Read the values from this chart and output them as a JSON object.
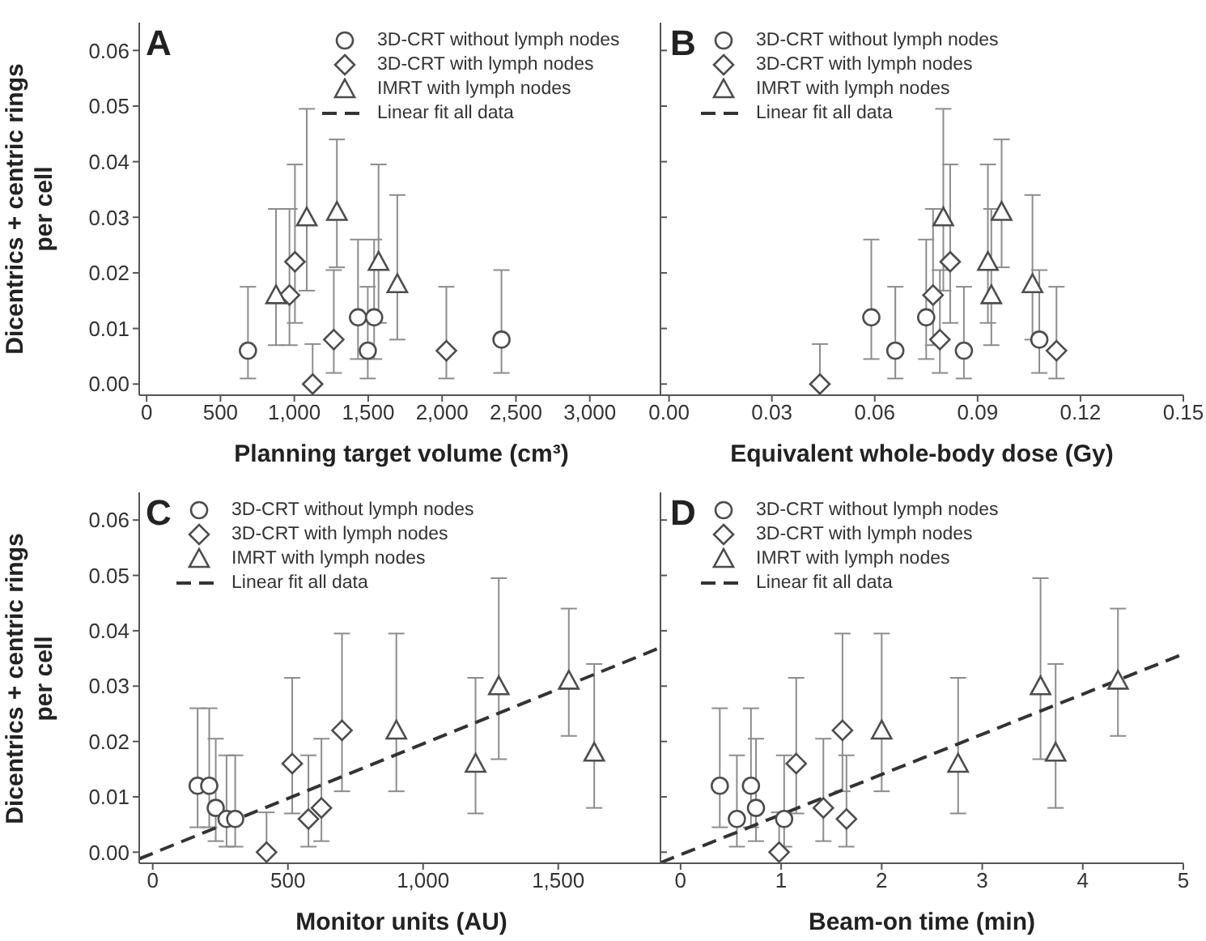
{
  "chart_data": [
    {
      "type": "scatter",
      "annotations": [
        "A"
      ],
      "xlabel": "Planning target volume (cm³)",
      "ylabel": "Dicentrics + centric rings per cell",
      "xlim": [
        -50,
        3500
      ],
      "ylim": [
        -0.002,
        0.065
      ],
      "xticks": [
        0,
        500,
        {
          "value": 1000,
          "label": "1,000"
        },
        {
          "value": 1500,
          "label": "1,500"
        },
        {
          "value": 2000,
          "label": "2,000"
        },
        {
          "value": 2500,
          "label": "2,500"
        },
        {
          "value": 3000,
          "label": "3,000"
        }
      ],
      "yticks": [
        {
          "value": 0,
          "label": "0.00"
        },
        {
          "value": 0.01,
          "label": "0.01"
        },
        {
          "value": 0.02,
          "label": "0.02"
        },
        {
          "value": 0.03,
          "label": "0.03"
        },
        {
          "value": 0.04,
          "label": "0.04"
        },
        {
          "value": 0.05,
          "label": "0.05"
        },
        {
          "value": 0.06,
          "label": "0.06"
        }
      ],
      "legend": "top right",
      "series": [
        {
          "name": "3D-CRT without lymph nodes",
          "marker": "circle",
          "color": "#4d4d4d",
          "x": [
            686,
            1431,
            1497,
            1540,
            2402
          ],
          "values": [
            0.006,
            0.012,
            0.006,
            0.012,
            0.008
          ],
          "errors": [
            [
              0.001,
              0.0175
            ],
            [
              0.0045,
              0.026
            ],
            [
              0.001,
              0.0175
            ],
            [
              0.0045,
              0.026
            ],
            [
              0.002,
              0.0205
            ]
          ]
        },
        {
          "name": "3D-CRT with lymph nodes",
          "marker": "diamond",
          "color": "#4d4d4d",
          "x": [
            967,
            1004,
            1124,
            1267,
            2029
          ],
          "values": [
            0.016,
            0.022,
            0,
            0.008,
            0.006
          ],
          "errors": [
            [
              0.007,
              0.0315
            ],
            [
              0.011,
              0.0395
            ],
            [
              0,
              0.0072
            ],
            [
              0.002,
              0.0205
            ],
            [
              0.001,
              0.0175
            ]
          ]
        },
        {
          "name": "IMRT with lymph nodes",
          "marker": "triangle",
          "color": "#4d4d4d",
          "x": [
            876,
            1084,
            1288,
            1570,
            1697
          ],
          "values": [
            0.016,
            0.03,
            0.031,
            0.022,
            0.018
          ],
          "errors": [
            [
              0.007,
              0.0315
            ],
            [
              0.0168,
              0.0495
            ],
            [
              0.021,
              0.044
            ],
            [
              0.011,
              0.0395
            ],
            [
              0.008,
              0.034
            ]
          ]
        },
        {
          "name": "Linear fit all data",
          "type": "line",
          "line_style": "dashed",
          "color": "#333333"
        }
      ]
    },
    {
      "type": "scatter",
      "annotations": [
        "B"
      ],
      "xlabel": "Equivalent whole-body dose (Gy)",
      "xlim": [
        -0.0025,
        0.15
      ],
      "ylim": [
        -0.002,
        0.065
      ],
      "xticks": [
        {
          "value": 0,
          "label": "0.00"
        },
        {
          "value": 0.03,
          "label": "0.03"
        },
        {
          "value": 0.06,
          "label": "0.06"
        },
        {
          "value": 0.09,
          "label": "0.09"
        },
        {
          "value": 0.12,
          "label": "0.12"
        },
        {
          "value": 0.15,
          "label": "0.15"
        }
      ],
      "yticks": [
        0,
        0.01,
        0.02,
        0.03,
        0.04,
        0.05,
        0.06
      ],
      "tick_labels": "x",
      "legend": "top left",
      "series": [
        {
          "name": "3D-CRT without lymph nodes",
          "marker": "circle",
          "color": "#4d4d4d",
          "x": [
            0.059,
            0.066,
            0.075,
            0.086,
            0.108
          ],
          "values": [
            0.012,
            0.006,
            0.012,
            0.006,
            0.008
          ],
          "errors": [
            [
              0.0045,
              0.026
            ],
            [
              0.001,
              0.0175
            ],
            [
              0.0045,
              0.026
            ],
            [
              0.001,
              0.0175
            ],
            [
              0.002,
              0.0205
            ]
          ]
        },
        {
          "name": "3D-CRT with lymph nodes",
          "marker": "diamond",
          "color": "#4d4d4d",
          "x": [
            0.044,
            0.077,
            0.079,
            0.082,
            0.113
          ],
          "values": [
            0,
            0.016,
            0.008,
            0.022,
            0.006
          ],
          "errors": [
            [
              0,
              0.0072
            ],
            [
              0.007,
              0.0315
            ],
            [
              0.002,
              0.0205
            ],
            [
              0.011,
              0.0395
            ],
            [
              0.001,
              0.0175
            ]
          ]
        },
        {
          "name": "IMRT with lymph nodes",
          "marker": "triangle",
          "color": "#4d4d4d",
          "x": [
            0.08,
            0.093,
            0.094,
            0.097,
            0.106
          ],
          "values": [
            0.03,
            0.022,
            0.016,
            0.031,
            0.018
          ],
          "errors": [
            [
              0.0168,
              0.0495
            ],
            [
              0.011,
              0.0395
            ],
            [
              0.007,
              0.0315
            ],
            [
              0.021,
              0.044
            ],
            [
              0.008,
              0.034
            ]
          ]
        },
        {
          "name": "Linear fit all data",
          "type": "line",
          "line_style": "dashed",
          "color": "#333333"
        }
      ]
    },
    {
      "type": "scatter",
      "annotations": [
        "C"
      ],
      "xlabel": "Monitor units (AU)",
      "ylabel": "Dicentrics + centric rings per cell",
      "xlim": [
        -50,
        1890
      ],
      "ylim": [
        -0.002,
        0.065
      ],
      "xticks": [
        0,
        500,
        {
          "value": 1000,
          "label": "1,000"
        },
        {
          "value": 1500,
          "label": "1,500"
        }
      ],
      "yticks": [
        {
          "value": 0,
          "label": "0.00"
        },
        {
          "value": 0.01,
          "label": "0.01"
        },
        {
          "value": 0.02,
          "label": "0.02"
        },
        {
          "value": 0.03,
          "label": "0.03"
        },
        {
          "value": 0.04,
          "label": "0.04"
        },
        {
          "value": 0.05,
          "label": "0.05"
        },
        {
          "value": 0.06,
          "label": "0.06"
        }
      ],
      "legend": "top left",
      "series": [
        {
          "name": "3D-CRT without lymph nodes",
          "marker": "circle",
          "color": "#4d4d4d",
          "x": [
            166,
            209,
            233,
            273,
            305
          ],
          "values": [
            0.012,
            0.012,
            0.008,
            0.006,
            0.006
          ],
          "errors": [
            [
              0.0045,
              0.026
            ],
            [
              0.0045,
              0.026
            ],
            [
              0.002,
              0.0205
            ],
            [
              0.001,
              0.0175
            ],
            [
              0.001,
              0.0175
            ]
          ]
        },
        {
          "name": "3D-CRT with lymph nodes",
          "marker": "diamond",
          "color": "#4d4d4d",
          "x": [
            421,
            516,
            576,
            624,
            700
          ],
          "values": [
            0,
            0.016,
            0.006,
            0.008,
            0.022
          ],
          "errors": [
            [
              0,
              0.0072
            ],
            [
              0.007,
              0.0315
            ],
            [
              0.001,
              0.0175
            ],
            [
              0.002,
              0.0205
            ],
            [
              0.011,
              0.0395
            ]
          ]
        },
        {
          "name": "IMRT with lymph nodes",
          "marker": "triangle",
          "color": "#4d4d4d",
          "x": [
            901,
            1194,
            1280,
            1539,
            1633
          ],
          "values": [
            0.022,
            0.016,
            0.03,
            0.031,
            0.018
          ],
          "errors": [
            [
              0.011,
              0.0395
            ],
            [
              0.007,
              0.0315
            ],
            [
              0.0168,
              0.0495
            ],
            [
              0.021,
              0.044
            ],
            [
              0.008,
              0.034
            ]
          ]
        },
        {
          "name": "Linear fit all data",
          "type": "line",
          "line_style": "dashed",
          "color": "#333333",
          "x": [
            -50,
            1890
          ],
          "values": [
            -0.0012,
            0.0372
          ]
        }
      ]
    },
    {
      "type": "scatter",
      "annotations": [
        "D"
      ],
      "xlabel": "Beam-on time (min)",
      "xlim": [
        -0.2,
        5
      ],
      "ylim": [
        -0.002,
        0.065
      ],
      "xticks": [
        0,
        1,
        2,
        3,
        4,
        5
      ],
      "yticks": [
        0,
        0.01,
        0.02,
        0.03,
        0.04,
        0.05,
        0.06
      ],
      "tick_labels": "x",
      "legend": "top left",
      "series": [
        {
          "name": "3D-CRT without lymph nodes",
          "marker": "circle",
          "color": "#4d4d4d",
          "x": [
            0.39,
            0.56,
            0.7,
            0.75,
            1.03
          ],
          "values": [
            0.012,
            0.006,
            0.012,
            0.008,
            0.006
          ],
          "errors": [
            [
              0.0045,
              0.026
            ],
            [
              0.001,
              0.0175
            ],
            [
              0.0045,
              0.026
            ],
            [
              0.002,
              0.0205
            ],
            [
              0.001,
              0.0175
            ]
          ]
        },
        {
          "name": "3D-CRT with lymph nodes",
          "marker": "diamond",
          "color": "#4d4d4d",
          "x": [
            0.98,
            1.15,
            1.42,
            1.61,
            1.65
          ],
          "values": [
            0,
            0.016,
            0.008,
            0.022,
            0.006
          ],
          "errors": [
            [
              0,
              0.0072
            ],
            [
              0.007,
              0.0315
            ],
            [
              0.002,
              0.0205
            ],
            [
              0.011,
              0.0395
            ],
            [
              0.001,
              0.0175
            ]
          ]
        },
        {
          "name": "IMRT with lymph nodes",
          "marker": "triangle",
          "color": "#4d4d4d",
          "x": [
            2,
            2.76,
            3.58,
            3.73,
            4.35
          ],
          "values": [
            0.022,
            0.016,
            0.03,
            0.018,
            0.031
          ],
          "errors": [
            [
              0.011,
              0.0395
            ],
            [
              0.007,
              0.0315
            ],
            [
              0.0168,
              0.0495
            ],
            [
              0.008,
              0.034
            ],
            [
              0.021,
              0.044
            ]
          ]
        },
        {
          "name": "Linear fit all data",
          "type": "line",
          "line_style": "dashed",
          "color": "#333333",
          "x": [
            -0.2,
            5
          ],
          "values": [
            -0.0019,
            0.0358
          ]
        }
      ]
    }
  ]
}
